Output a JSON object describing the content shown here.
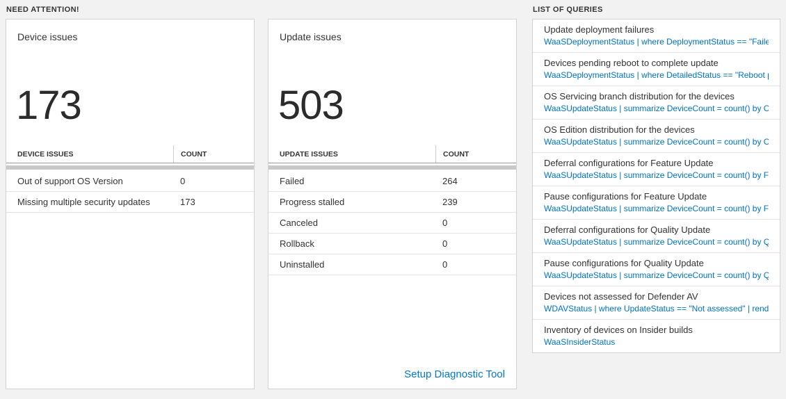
{
  "sections": {
    "need_attention": "NEED ATTENTION!",
    "queries_header": "LIST OF QUERIES"
  },
  "colors": {
    "query_blue": "#0072c6",
    "link_blue": "#0078d4",
    "background": "#f2f2f2"
  },
  "device_card": {
    "title": "Device issues",
    "count": "173",
    "table": {
      "col1": "DEVICE ISSUES",
      "col2": "COUNT",
      "rows": [
        {
          "label": "Out of support OS Version",
          "count": "0"
        },
        {
          "label": "Missing multiple security updates",
          "count": "173"
        }
      ]
    }
  },
  "update_card": {
    "title": "Update issues",
    "count": "503",
    "table": {
      "col1": "UPDATE ISSUES",
      "col2": "COUNT",
      "rows": [
        {
          "label": "Failed",
          "count": "264"
        },
        {
          "label": "Progress stalled",
          "count": "239"
        },
        {
          "label": "Canceled",
          "count": "0"
        },
        {
          "label": "Rollback",
          "count": "0"
        },
        {
          "label": "Uninstalled",
          "count": "0"
        }
      ]
    },
    "footer_link": "Setup Diagnostic Tool"
  },
  "queries": {
    "items": [
      {
        "title": "Update deployment failures",
        "query": "WaaSDeploymentStatus | where DeploymentStatus == \"Failed\" |..."
      },
      {
        "title": "Devices pending reboot to complete update",
        "query": "WaaSDeploymentStatus | where DetailedStatus == \"Reboot pend..."
      },
      {
        "title": "OS Servicing branch distribution for the devices",
        "query": "WaaSUpdateStatus | summarize DeviceCount = count() by OSSer..."
      },
      {
        "title": "OS Edition distribution for the devices",
        "query": "WaaSUpdateStatus | summarize DeviceCount = count() by OSEdit..."
      },
      {
        "title": "Deferral configurations for Feature Update",
        "query": "WaaSUpdateStatus | summarize DeviceCount = count() by Featur..."
      },
      {
        "title": "Pause configurations for Feature Update",
        "query": "WaaSUpdateStatus | summarize DeviceCount = count() by Featur..."
      },
      {
        "title": "Deferral configurations for Quality Update",
        "query": "WaaSUpdateStatus | summarize DeviceCount = count() by Qualit..."
      },
      {
        "title": "Pause configurations for Quality Update",
        "query": "WaaSUpdateStatus | summarize DeviceCount = count() by Qualit..."
      },
      {
        "title": "Devices not assessed for Defender AV",
        "query": "WDAVStatus | where UpdateStatus == \"Not assessed\" | render ta..."
      },
      {
        "title": "Inventory of devices on Insider builds",
        "query": "WaaSInsiderStatus"
      }
    ]
  }
}
